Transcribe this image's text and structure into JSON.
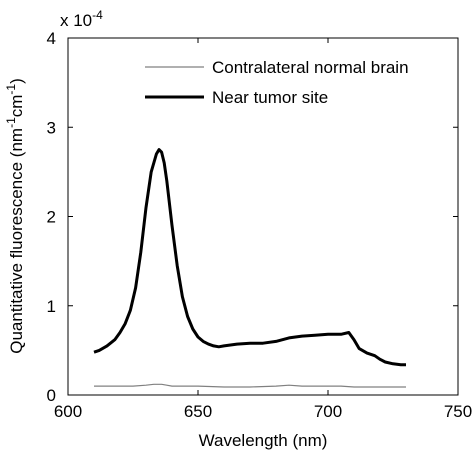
{
  "chart_data": {
    "type": "line",
    "title": "",
    "xlabel": "Wavelength (nm)",
    "ylabel_parts": [
      "Quantitative fluorescence (nm",
      "-1",
      "cm",
      "-1",
      ")"
    ],
    "y_multiplier": {
      "base": "x 10",
      "exponent": "-4"
    },
    "xlim": [
      600,
      750
    ],
    "ylim": [
      0,
      4
    ],
    "x_ticks": [
      600,
      650,
      700,
      750
    ],
    "y_ticks": [
      0,
      1,
      2,
      3,
      4
    ],
    "grid": false,
    "legend_position": "top-right",
    "series": [
      {
        "name": "Contralateral normal brain",
        "color": "#808080",
        "style": "thin",
        "x": [
          610,
          615,
          620,
          625,
          630,
          633,
          636,
          638,
          640,
          645,
          650,
          660,
          670,
          680,
          685,
          690,
          700,
          705,
          710,
          720,
          730
        ],
        "y": [
          0.1,
          0.1,
          0.1,
          0.1,
          0.11,
          0.12,
          0.12,
          0.11,
          0.1,
          0.1,
          0.1,
          0.09,
          0.09,
          0.1,
          0.11,
          0.1,
          0.1,
          0.1,
          0.09,
          0.09,
          0.09
        ]
      },
      {
        "name": "Near tumor site",
        "color": "#000000",
        "style": "thick",
        "x": [
          610,
          612,
          615,
          618,
          620,
          622,
          624,
          626,
          628,
          630,
          632,
          634,
          635,
          636,
          637,
          638,
          640,
          642,
          644,
          646,
          648,
          650,
          652,
          654,
          656,
          658,
          660,
          665,
          670,
          675,
          680,
          685,
          690,
          695,
          700,
          705,
          708,
          710,
          712,
          715,
          718,
          720,
          722,
          725,
          728,
          730
        ],
        "y": [
          0.48,
          0.5,
          0.55,
          0.62,
          0.7,
          0.8,
          0.95,
          1.2,
          1.6,
          2.1,
          2.5,
          2.7,
          2.75,
          2.72,
          2.6,
          2.4,
          1.9,
          1.45,
          1.1,
          0.88,
          0.74,
          0.65,
          0.6,
          0.57,
          0.55,
          0.54,
          0.55,
          0.57,
          0.58,
          0.58,
          0.6,
          0.64,
          0.66,
          0.67,
          0.68,
          0.68,
          0.7,
          0.62,
          0.52,
          0.47,
          0.44,
          0.4,
          0.37,
          0.35,
          0.34,
          0.34
        ]
      }
    ]
  }
}
